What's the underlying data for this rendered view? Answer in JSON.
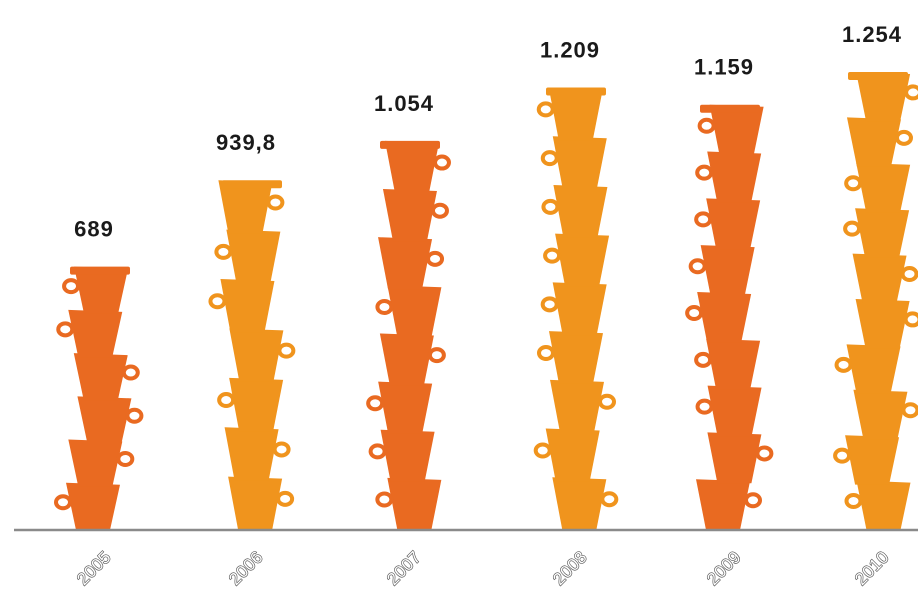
{
  "chart_data": {
    "type": "bar",
    "categories": [
      "2005",
      "2006",
      "2007",
      "2008",
      "2009",
      "2010"
    ],
    "values": [
      689,
      939.8,
      1054,
      1209,
      1159,
      1254
    ],
    "data_labels": [
      "689",
      "939,8",
      "1.054",
      "1.209",
      "1.159",
      "1.254"
    ],
    "title": "",
    "xlabel": "",
    "ylabel": "",
    "ylim": [
      0,
      1400
    ],
    "grid": false,
    "legend": "none",
    "colors": [
      "#e96a21",
      "#f0941d",
      "#e96a21",
      "#f0941d",
      "#e96a21",
      "#f0941d"
    ],
    "mark_style": "stacked-cups-icon"
  }
}
